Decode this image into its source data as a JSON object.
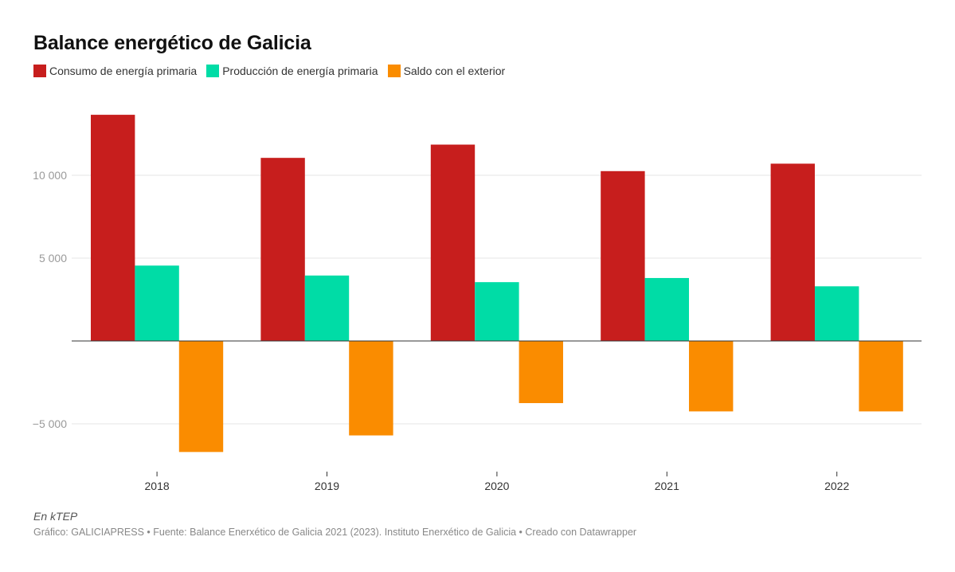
{
  "chart_data": {
    "type": "bar",
    "title": "Balance energético de Galicia",
    "categories": [
      "2018",
      "2019",
      "2020",
      "2021",
      "2022"
    ],
    "series": [
      {
        "name": "Consumo de energía primaria",
        "color": "#c71e1d",
        "values": [
          13650,
          11050,
          11850,
          10250,
          10700
        ]
      },
      {
        "name": "Producción de energía primaria",
        "color": "#00dca6",
        "values": [
          4550,
          3950,
          3550,
          3800,
          3300
        ]
      },
      {
        "name": "Saldo con el exterior",
        "color": "#fa8c00",
        "values": [
          -6700,
          -5700,
          -3750,
          -4250,
          -4250
        ]
      }
    ],
    "ylim": [
      -7500,
      15000
    ],
    "yticks": [
      -5000,
      5000,
      10000
    ],
    "ytick_labels": [
      "−5 000",
      "5 000",
      "10 000"
    ],
    "xlabel": "",
    "ylabel": "",
    "grid": true,
    "legend_position": "top-left"
  },
  "notes": "En kTEP",
  "source": "Gráfico: GALICIAPRESS • Fuente: Balance Enerxético de Galicia 2021 (2023). Instituto Enerxético de Galicia • Creado con Datawrapper"
}
